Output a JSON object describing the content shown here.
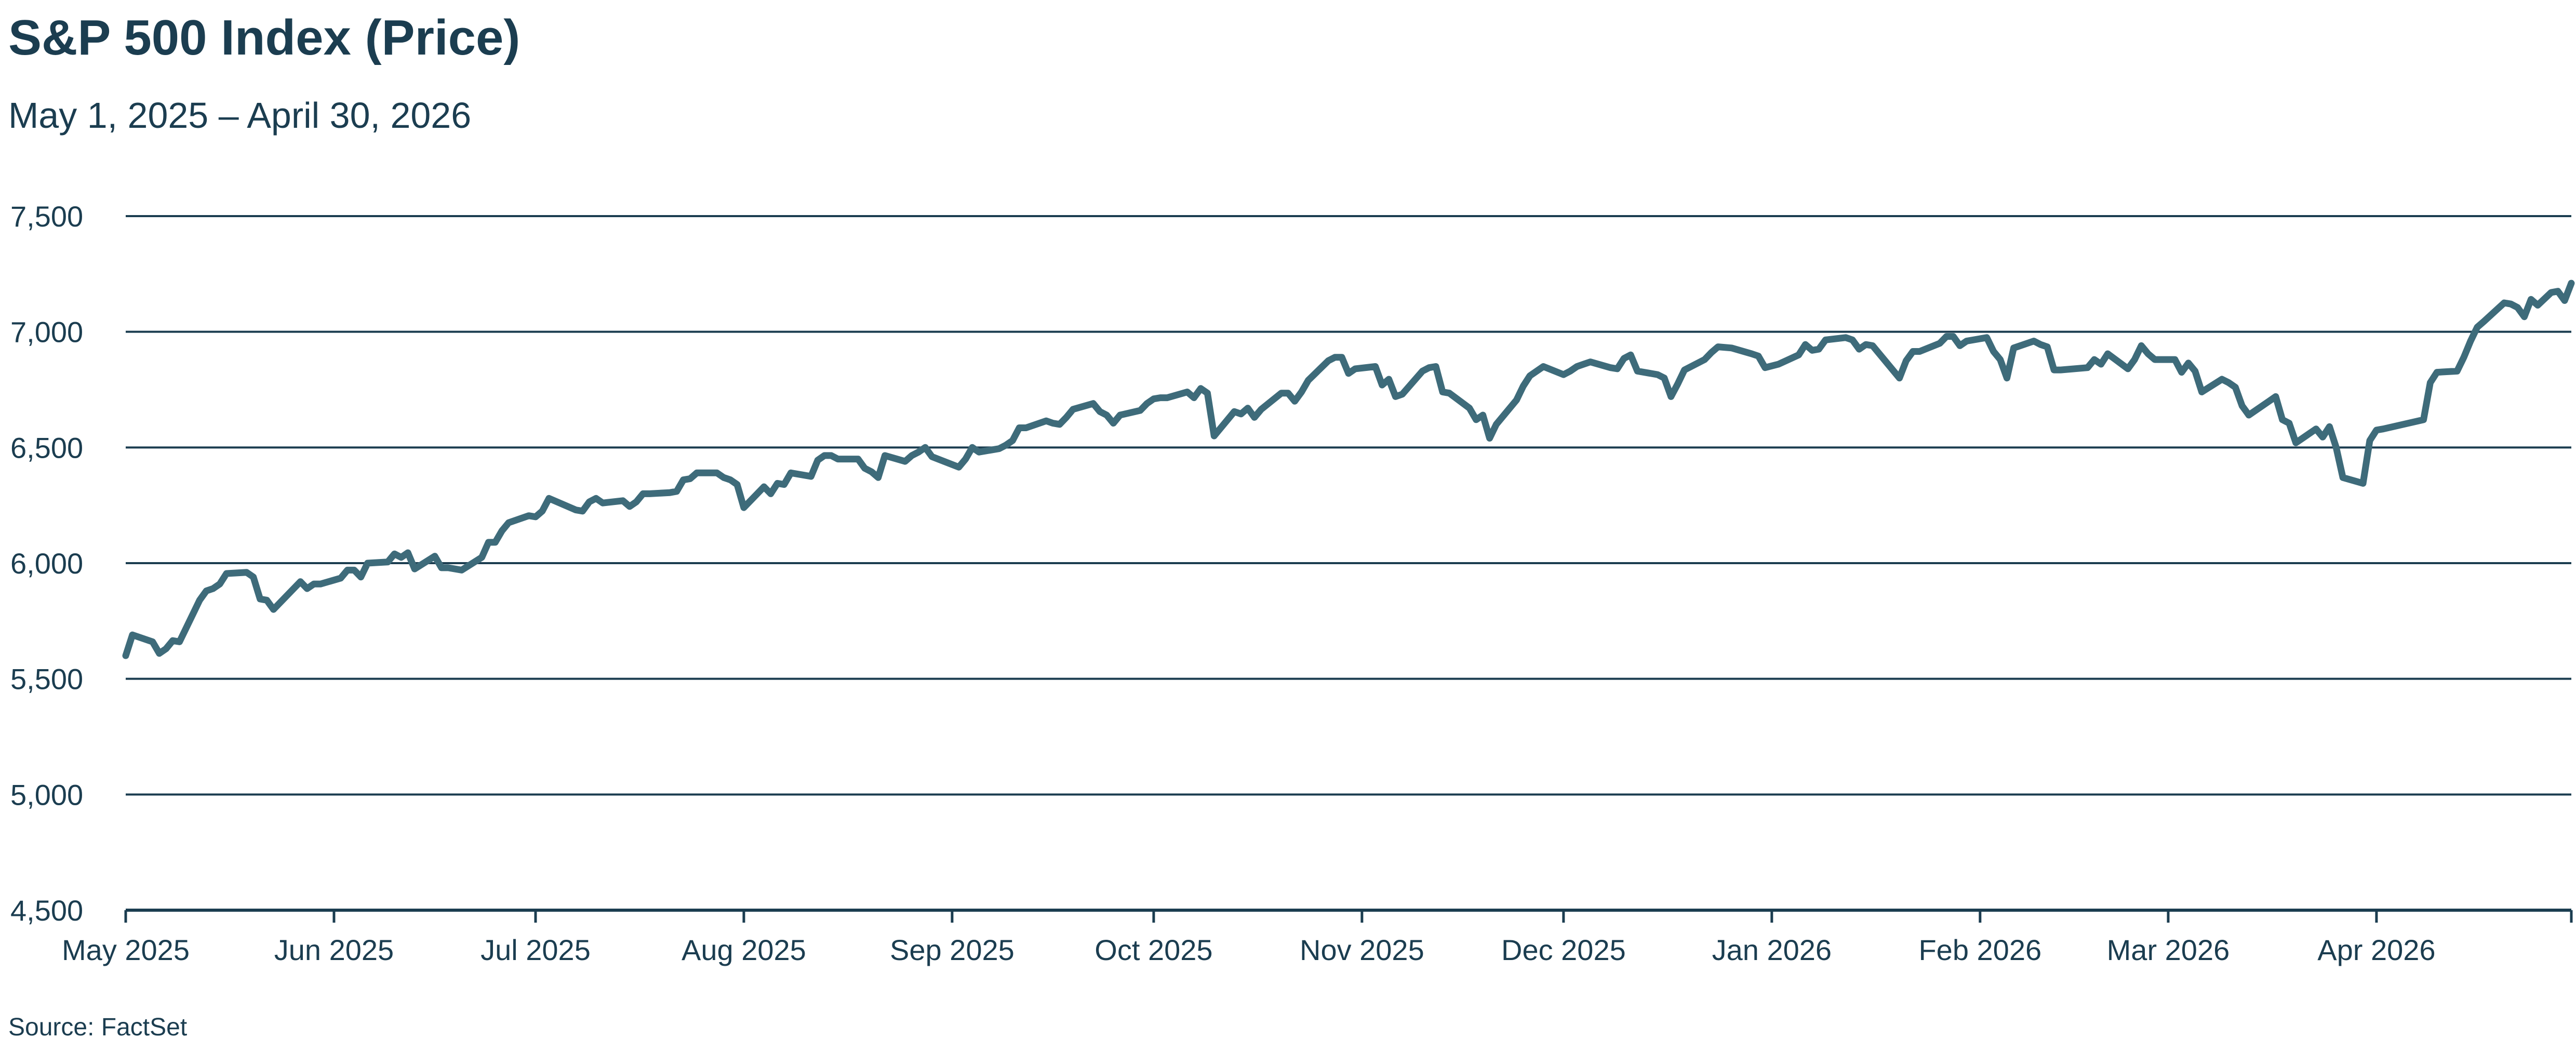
{
  "title": "S&P 500 Index (Price)",
  "subtitle": "May 1, 2025 – April 30, 2026",
  "source": "Source: FactSet",
  "colors": {
    "line": "#3e6b7a",
    "text": "#1b3d50",
    "grid": "#1b3d50"
  },
  "chart_data": {
    "type": "line",
    "title": "S&P 500 Index (Price)",
    "subtitle": "May 1, 2025 – April 30, 2026",
    "ylim": [
      4500,
      7500
    ],
    "yticks": [
      4500,
      5000,
      5500,
      6000,
      6500,
      7000,
      7500
    ],
    "ytick_labels": [
      "4,500",
      "5,000",
      "5,500",
      "6,000",
      "6,500",
      "7,000",
      "7,500"
    ],
    "xlim": [
      "2025-05-01",
      "2026-04-30"
    ],
    "xticks": [
      "2025-05-01",
      "2025-06-01",
      "2025-07-01",
      "2025-08-01",
      "2025-09-01",
      "2025-10-01",
      "2025-11-01",
      "2025-12-01",
      "2026-01-01",
      "2026-02-01",
      "2026-03-01",
      "2026-04-01"
    ],
    "xtick_labels": [
      "May 2025",
      "Jun 2025",
      "Jul 2025",
      "Aug 2025",
      "Sep 2025",
      "Oct 2025",
      "Nov 2025",
      "Dec 2025",
      "Jan 2026",
      "Feb 2026",
      "Mar 2026",
      "Apr 2026"
    ],
    "grid": "horizontal",
    "series": [
      {
        "values": [
          [
            "2025-05-01",
            5600
          ],
          [
            "2025-05-02",
            5690
          ],
          [
            "2025-05-05",
            5660
          ],
          [
            "2025-05-06",
            5610
          ],
          [
            "2025-05-07",
            5630
          ],
          [
            "2025-05-08",
            5665
          ],
          [
            "2025-05-09",
            5660
          ],
          [
            "2025-05-12",
            5840
          ],
          [
            "2025-05-13",
            5880
          ],
          [
            "2025-05-14",
            5890
          ],
          [
            "2025-05-15",
            5910
          ],
          [
            "2025-05-16",
            5955
          ],
          [
            "2025-05-19",
            5960
          ],
          [
            "2025-05-20",
            5940
          ],
          [
            "2025-05-21",
            5845
          ],
          [
            "2025-05-22",
            5840
          ],
          [
            "2025-05-23",
            5800
          ],
          [
            "2025-05-27",
            5920
          ],
          [
            "2025-05-28",
            5890
          ],
          [
            "2025-05-29",
            5910
          ],
          [
            "2025-05-30",
            5910
          ],
          [
            "2025-06-02",
            5935
          ],
          [
            "2025-06-03",
            5970
          ],
          [
            "2025-06-04",
            5970
          ],
          [
            "2025-06-05",
            5940
          ],
          [
            "2025-06-06",
            6000
          ],
          [
            "2025-06-09",
            6005
          ],
          [
            "2025-06-10",
            6040
          ],
          [
            "2025-06-11",
            6025
          ],
          [
            "2025-06-12",
            6045
          ],
          [
            "2025-06-13",
            5975
          ],
          [
            "2025-06-16",
            6030
          ],
          [
            "2025-06-17",
            5980
          ],
          [
            "2025-06-18",
            5980
          ],
          [
            "2025-06-20",
            5970
          ],
          [
            "2025-06-23",
            6025
          ],
          [
            "2025-06-24",
            6090
          ],
          [
            "2025-06-25",
            6090
          ],
          [
            "2025-06-26",
            6140
          ],
          [
            "2025-06-27",
            6175
          ],
          [
            "2025-06-30",
            6205
          ],
          [
            "2025-07-01",
            6200
          ],
          [
            "2025-07-02",
            6225
          ],
          [
            "2025-07-03",
            6280
          ],
          [
            "2025-07-07",
            6230
          ],
          [
            "2025-07-08",
            6225
          ],
          [
            "2025-07-09",
            6265
          ],
          [
            "2025-07-10",
            6280
          ],
          [
            "2025-07-11",
            6260
          ],
          [
            "2025-07-14",
            6270
          ],
          [
            "2025-07-15",
            6245
          ],
          [
            "2025-07-16",
            6265
          ],
          [
            "2025-07-17",
            6300
          ],
          [
            "2025-07-18",
            6300
          ],
          [
            "2025-07-21",
            6305
          ],
          [
            "2025-07-22",
            6310
          ],
          [
            "2025-07-23",
            6360
          ],
          [
            "2025-07-24",
            6365
          ],
          [
            "2025-07-25",
            6390
          ],
          [
            "2025-07-28",
            6390
          ],
          [
            "2025-07-29",
            6370
          ],
          [
            "2025-07-30",
            6360
          ],
          [
            "2025-07-31",
            6340
          ],
          [
            "2025-08-01",
            6240
          ],
          [
            "2025-08-04",
            6330
          ],
          [
            "2025-08-05",
            6300
          ],
          [
            "2025-08-06",
            6345
          ],
          [
            "2025-08-07",
            6340
          ],
          [
            "2025-08-08",
            6390
          ],
          [
            "2025-08-11",
            6375
          ],
          [
            "2025-08-12",
            6445
          ],
          [
            "2025-08-13",
            6465
          ],
          [
            "2025-08-14",
            6465
          ],
          [
            "2025-08-15",
            6450
          ],
          [
            "2025-08-18",
            6450
          ],
          [
            "2025-08-19",
            6410
          ],
          [
            "2025-08-20",
            6395
          ],
          [
            "2025-08-21",
            6370
          ],
          [
            "2025-08-22",
            6465
          ],
          [
            "2025-08-25",
            6440
          ],
          [
            "2025-08-26",
            6465
          ],
          [
            "2025-08-27",
            6480
          ],
          [
            "2025-08-28",
            6500
          ],
          [
            "2025-08-29",
            6460
          ],
          [
            "2025-09-02",
            6415
          ],
          [
            "2025-09-03",
            6450
          ],
          [
            "2025-09-04",
            6500
          ],
          [
            "2025-09-05",
            6480
          ],
          [
            "2025-09-08",
            6495
          ],
          [
            "2025-09-09",
            6510
          ],
          [
            "2025-09-10",
            6530
          ],
          [
            "2025-09-11",
            6585
          ],
          [
            "2025-09-12",
            6585
          ],
          [
            "2025-09-15",
            6615
          ],
          [
            "2025-09-16",
            6605
          ],
          [
            "2025-09-17",
            6600
          ],
          [
            "2025-09-18",
            6630
          ],
          [
            "2025-09-19",
            6665
          ],
          [
            "2025-09-22",
            6690
          ],
          [
            "2025-09-23",
            6655
          ],
          [
            "2025-09-24",
            6640
          ],
          [
            "2025-09-25",
            6605
          ],
          [
            "2025-09-26",
            6640
          ],
          [
            "2025-09-29",
            6660
          ],
          [
            "2025-09-30",
            6690
          ],
          [
            "2025-10-01",
            6710
          ],
          [
            "2025-10-02",
            6715
          ],
          [
            "2025-10-03",
            6715
          ],
          [
            "2025-10-06",
            6740
          ],
          [
            "2025-10-07",
            6715
          ],
          [
            "2025-10-08",
            6755
          ],
          [
            "2025-10-09",
            6735
          ],
          [
            "2025-10-10",
            6550
          ],
          [
            "2025-10-13",
            6655
          ],
          [
            "2025-10-14",
            6645
          ],
          [
            "2025-10-15",
            6670
          ],
          [
            "2025-10-16",
            6630
          ],
          [
            "2025-10-17",
            6665
          ],
          [
            "2025-10-20",
            6735
          ],
          [
            "2025-10-21",
            6735
          ],
          [
            "2025-10-22",
            6700
          ],
          [
            "2025-10-23",
            6740
          ],
          [
            "2025-10-24",
            6790
          ],
          [
            "2025-10-27",
            6875
          ],
          [
            "2025-10-28",
            6890
          ],
          [
            "2025-10-29",
            6890
          ],
          [
            "2025-10-30",
            6820
          ],
          [
            "2025-10-31",
            6840
          ],
          [
            "2025-11-03",
            6850
          ],
          [
            "2025-11-04",
            6770
          ],
          [
            "2025-11-05",
            6795
          ],
          [
            "2025-11-06",
            6720
          ],
          [
            "2025-11-07",
            6730
          ],
          [
            "2025-11-10",
            6830
          ],
          [
            "2025-11-11",
            6845
          ],
          [
            "2025-11-12",
            6850
          ],
          [
            "2025-11-13",
            6740
          ],
          [
            "2025-11-14",
            6735
          ],
          [
            "2025-11-17",
            6670
          ],
          [
            "2025-11-18",
            6620
          ],
          [
            "2025-11-19",
            6640
          ],
          [
            "2025-11-20",
            6540
          ],
          [
            "2025-11-21",
            6600
          ],
          [
            "2025-11-24",
            6705
          ],
          [
            "2025-11-25",
            6765
          ],
          [
            "2025-11-26",
            6810
          ],
          [
            "2025-11-28",
            6850
          ],
          [
            "2025-12-01",
            6815
          ],
          [
            "2025-12-02",
            6830
          ],
          [
            "2025-12-03",
            6850
          ],
          [
            "2025-12-04",
            6860
          ],
          [
            "2025-12-05",
            6870
          ],
          [
            "2025-12-08",
            6845
          ],
          [
            "2025-12-09",
            6840
          ],
          [
            "2025-12-10",
            6885
          ],
          [
            "2025-12-11",
            6900
          ],
          [
            "2025-12-12",
            6830
          ],
          [
            "2025-12-15",
            6815
          ],
          [
            "2025-12-16",
            6800
          ],
          [
            "2025-12-17",
            6720
          ],
          [
            "2025-12-18",
            6775
          ],
          [
            "2025-12-19",
            6835
          ],
          [
            "2025-12-22",
            6880
          ],
          [
            "2025-12-23",
            6910
          ],
          [
            "2025-12-24",
            6935
          ],
          [
            "2025-12-26",
            6930
          ],
          [
            "2025-12-29",
            6905
          ],
          [
            "2025-12-30",
            6895
          ],
          [
            "2025-12-31",
            6845
          ],
          [
            "2026-01-02",
            6860
          ],
          [
            "2026-01-05",
            6900
          ],
          [
            "2026-01-06",
            6945
          ],
          [
            "2026-01-07",
            6920
          ],
          [
            "2026-01-08",
            6925
          ],
          [
            "2026-01-09",
            6965
          ],
          [
            "2026-01-12",
            6975
          ],
          [
            "2026-01-13",
            6965
          ],
          [
            "2026-01-14",
            6925
          ],
          [
            "2026-01-15",
            6945
          ],
          [
            "2026-01-16",
            6940
          ],
          [
            "2026-01-20",
            6800
          ],
          [
            "2026-01-21",
            6875
          ],
          [
            "2026-01-22",
            6915
          ],
          [
            "2026-01-23",
            6915
          ],
          [
            "2026-01-26",
            6950
          ],
          [
            "2026-01-27",
            6980
          ],
          [
            "2026-01-28",
            6980
          ],
          [
            "2026-01-29",
            6940
          ],
          [
            "2026-01-30",
            6960
          ],
          [
            "2026-02-02",
            6975
          ],
          [
            "2026-02-03",
            6915
          ],
          [
            "2026-02-04",
            6880
          ],
          [
            "2026-02-05",
            6800
          ],
          [
            "2026-02-06",
            6930
          ],
          [
            "2026-02-09",
            6960
          ],
          [
            "2026-02-10",
            6945
          ],
          [
            "2026-02-11",
            6935
          ],
          [
            "2026-02-12",
            6835
          ],
          [
            "2026-02-13",
            6835
          ],
          [
            "2026-02-17",
            6845
          ],
          [
            "2026-02-18",
            6880
          ],
          [
            "2026-02-19",
            6860
          ],
          [
            "2026-02-20",
            6905
          ],
          [
            "2026-02-23",
            6840
          ],
          [
            "2026-02-24",
            6880
          ],
          [
            "2026-02-25",
            6940
          ],
          [
            "2026-02-26",
            6905
          ],
          [
            "2026-02-27",
            6880
          ],
          [
            "2026-03-02",
            6880
          ],
          [
            "2026-03-03",
            6825
          ],
          [
            "2026-03-04",
            6865
          ],
          [
            "2026-03-05",
            6830
          ],
          [
            "2026-03-06",
            6740
          ],
          [
            "2026-03-09",
            6795
          ],
          [
            "2026-03-10",
            6780
          ],
          [
            "2026-03-11",
            6760
          ],
          [
            "2026-03-12",
            6680
          ],
          [
            "2026-03-13",
            6640
          ],
          [
            "2026-03-16",
            6700
          ],
          [
            "2026-03-17",
            6720
          ],
          [
            "2026-03-18",
            6620
          ],
          [
            "2026-03-19",
            6605
          ],
          [
            "2026-03-20",
            6520
          ],
          [
            "2026-03-23",
            6580
          ],
          [
            "2026-03-24",
            6545
          ],
          [
            "2026-03-25",
            6590
          ],
          [
            "2026-03-26",
            6500
          ],
          [
            "2026-03-27",
            6370
          ],
          [
            "2026-03-30",
            6345
          ],
          [
            "2026-03-31",
            6530
          ],
          [
            "2026-04-01",
            6575
          ],
          [
            "2026-04-02",
            6580
          ],
          [
            "2026-04-08",
            6620
          ],
          [
            "2026-04-09",
            6780
          ],
          [
            "2026-04-10",
            6825
          ],
          [
            "2026-04-13",
            6830
          ],
          [
            "2026-04-14",
            6890
          ],
          [
            "2026-04-15",
            6960
          ],
          [
            "2026-04-16",
            7020
          ],
          [
            "2026-04-17",
            7045
          ],
          [
            "2026-04-20",
            7125
          ],
          [
            "2026-04-21",
            7120
          ],
          [
            "2026-04-22",
            7105
          ],
          [
            "2026-04-23",
            7065
          ],
          [
            "2026-04-24",
            7140
          ],
          [
            "2026-04-25",
            7115
          ],
          [
            "2026-04-27",
            7170
          ],
          [
            "2026-04-28",
            7175
          ],
          [
            "2026-04-29",
            7135
          ],
          [
            "2026-04-30",
            7210
          ]
        ]
      }
    ]
  }
}
